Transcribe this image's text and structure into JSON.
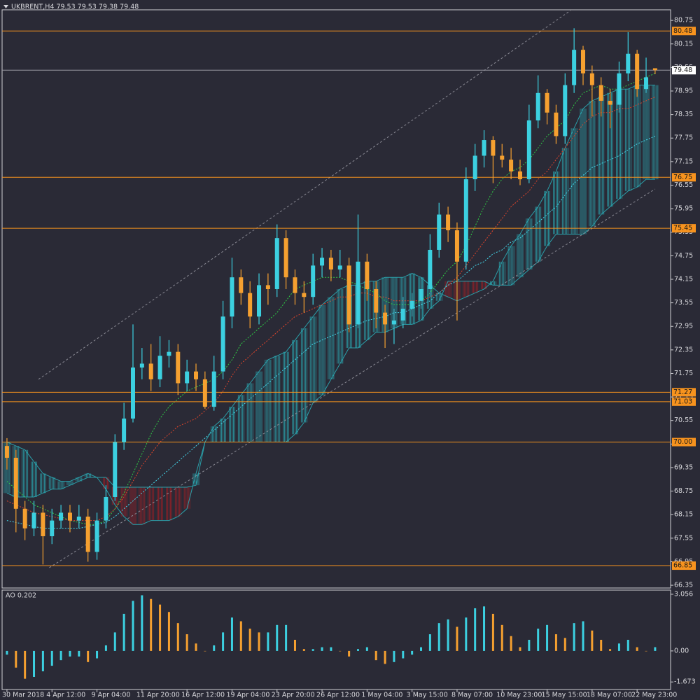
{
  "chart_data": [
    {
      "type": "candlestick",
      "title": "UKBRENT,H4  79.53 79.53 79.38 79.48",
      "up_color": "#3cd0e0",
      "down_color": "#f5a030",
      "xlim": [
        -0.54,
        73.72
      ],
      "ylim": [
        66.28,
        81.02
      ],
      "xticks": [
        {
          "value": 0,
          "label": "30 Mar 2018"
        },
        {
          "value": 5,
          "label": "4 Apr 12:00"
        },
        {
          "value": 10,
          "label": "9 Apr 04:00"
        },
        {
          "value": 15,
          "label": "11 Apr 20:00"
        },
        {
          "value": 20,
          "label": "16 Apr 12:00"
        },
        {
          "value": 25,
          "label": "19 Apr 04:00"
        },
        {
          "value": 30,
          "label": "23 Apr 20:00"
        },
        {
          "value": 35,
          "label": "26 Apr 12:00"
        },
        {
          "value": 40,
          "label": "1 May 04:00"
        },
        {
          "value": 45,
          "label": "3 May 15:00"
        },
        {
          "value": 50,
          "label": "8 May 07:00"
        },
        {
          "value": 55,
          "label": "10 May 23:00"
        },
        {
          "value": 60,
          "label": "15 May 15:00"
        },
        {
          "value": 65,
          "label": "18 May 07:00"
        },
        {
          "value": 70,
          "label": "22 May 23:00"
        }
      ],
      "yticks": [
        80.75,
        80.15,
        79.55,
        78.95,
        78.35,
        77.75,
        77.15,
        76.55,
        75.95,
        75.35,
        74.75,
        74.15,
        73.55,
        72.95,
        72.35,
        71.75,
        71.15,
        70.55,
        69.95,
        69.35,
        68.75,
        68.15,
        67.55,
        66.95,
        66.35
      ],
      "open": [
        69.9,
        69.6,
        68.3,
        67.8,
        68.2,
        67.6,
        68.0,
        68.2,
        68.0,
        68.1,
        67.2,
        68.0,
        68.6,
        70.0,
        70.6,
        71.9,
        72.0,
        71.6,
        72.2,
        72.3,
        71.5,
        71.8,
        71.6,
        70.9,
        71.8,
        73.2,
        74.2,
        73.8,
        73.2,
        74.0,
        73.9,
        75.2,
        74.2,
        73.8,
        73.7,
        74.5,
        74.7,
        74.4,
        74.5,
        73.0,
        74.6,
        73.9,
        73.3,
        73.0,
        73.1,
        73.4,
        73.6,
        73.9,
        74.9,
        75.8,
        75.4,
        74.6,
        76.7,
        77.3,
        77.7,
        77.3,
        77.2,
        76.9,
        76.7,
        78.2,
        78.9,
        78.4,
        77.8,
        79.1,
        80.0,
        79.4,
        79.1,
        78.7,
        78.6,
        79.4,
        79.9,
        79.0,
        79.53
      ],
      "high": [
        70.1,
        69.8,
        68.5,
        68.5,
        68.4,
        68.3,
        68.4,
        68.4,
        68.4,
        68.3,
        68.2,
        68.9,
        70.2,
        71.0,
        73.0,
        72.4,
        72.5,
        72.7,
        72.6,
        72.5,
        72.1,
        72.0,
        71.8,
        72.2,
        73.6,
        74.7,
        74.4,
        74.1,
        74.3,
        74.3,
        75.55,
        75.4,
        74.4,
        74.1,
        74.8,
        74.95,
        74.9,
        74.9,
        74.7,
        75.8,
        74.8,
        74.1,
        73.5,
        73.4,
        73.7,
        73.8,
        74.2,
        75.3,
        76.1,
        76.0,
        75.6,
        77.0,
        77.6,
        77.95,
        77.8,
        77.6,
        77.5,
        77.2,
        78.6,
        79.35,
        79.0,
        78.6,
        79.4,
        80.55,
        80.1,
        79.6,
        79.3,
        79.0,
        79.7,
        80.45,
        80.0,
        79.8,
        79.53
      ],
      "low": [
        69.3,
        67.7,
        67.5,
        67.6,
        66.88,
        67.4,
        67.8,
        67.7,
        67.8,
        66.95,
        67.0,
        67.8,
        68.5,
        69.8,
        70.5,
        71.6,
        71.3,
        71.4,
        71.9,
        71.2,
        71.3,
        71.3,
        70.85,
        70.8,
        71.6,
        72.9,
        73.5,
        72.9,
        73.0,
        73.5,
        73.7,
        73.9,
        73.5,
        73.3,
        73.5,
        74.2,
        74.1,
        74.2,
        72.8,
        72.9,
        73.6,
        72.9,
        72.4,
        72.5,
        72.9,
        73.2,
        73.4,
        73.7,
        74.7,
        75.1,
        73.1,
        74.4,
        76.4,
        77.0,
        76.6,
        77.0,
        76.7,
        76.55,
        76.6,
        78.0,
        78.1,
        77.6,
        77.6,
        78.9,
        79.1,
        78.3,
        78.3,
        78.0,
        78.4,
        79.2,
        78.8,
        78.9,
        79.38
      ],
      "close": [
        69.6,
        68.3,
        67.8,
        68.2,
        67.6,
        68.0,
        68.2,
        68.0,
        68.1,
        67.2,
        68.0,
        68.6,
        70.0,
        70.6,
        71.9,
        72.0,
        71.6,
        72.2,
        72.3,
        71.5,
        71.8,
        71.6,
        70.9,
        71.8,
        73.2,
        74.2,
        73.8,
        73.2,
        74.0,
        73.9,
        75.2,
        74.2,
        73.8,
        73.7,
        74.5,
        74.7,
        74.4,
        74.5,
        73.0,
        74.6,
        73.9,
        73.3,
        73.0,
        73.1,
        73.4,
        73.6,
        73.9,
        74.9,
        75.8,
        75.4,
        74.6,
        76.7,
        77.3,
        77.7,
        77.3,
        77.2,
        76.9,
        76.7,
        78.2,
        78.9,
        78.4,
        77.8,
        79.1,
        80.0,
        79.4,
        79.1,
        78.7,
        78.6,
        79.4,
        79.9,
        79.0,
        79.3,
        79.48
      ],
      "cloud": {
        "up_color": "#2aa0aa",
        "down_color": "#9a1f26",
        "span_a": [
          70.0,
          69.9,
          69.8,
          69.5,
          69.2,
          69.1,
          69.0,
          69.0,
          69.1,
          69.2,
          69.1,
          68.8,
          68.4,
          68.1,
          67.9,
          67.9,
          68.0,
          68.0,
          68.0,
          68.1,
          68.3,
          69.2,
          70.0,
          70.4,
          70.6,
          70.9,
          71.2,
          71.5,
          71.8,
          72.1,
          72.2,
          72.3,
          72.6,
          72.9,
          73.2,
          73.5,
          73.7,
          73.9,
          74.0,
          74.0,
          74.1,
          74.1,
          74.2,
          74.2,
          74.2,
          74.3,
          74.2,
          74.0,
          73.8,
          73.7,
          73.6,
          73.7,
          73.8,
          73.9,
          74.1,
          74.6,
          75.0,
          75.3,
          75.7,
          76.0,
          76.4,
          76.9,
          77.5,
          78.0,
          78.5,
          78.7,
          78.8,
          78.9,
          79.0,
          79.0,
          79.1,
          79.1,
          79.1
        ],
        "span_b": [
          68.7,
          68.6,
          68.6,
          68.6,
          68.7,
          68.8,
          68.8,
          68.9,
          69.0,
          69.1,
          69.1,
          69.1,
          68.85,
          68.85,
          68.85,
          68.85,
          68.85,
          68.85,
          68.85,
          68.85,
          68.85,
          68.9,
          70.0,
          70.0,
          70.0,
          70.0,
          70.0,
          70.0,
          70.0,
          70.0,
          70.0,
          70.0,
          70.2,
          70.5,
          71.0,
          71.2,
          71.6,
          72.0,
          72.4,
          72.4,
          72.6,
          72.8,
          72.8,
          72.9,
          73.0,
          73.0,
          73.1,
          73.4,
          73.6,
          74.1,
          74.1,
          74.1,
          74.1,
          74.1,
          74.0,
          74.0,
          74.0,
          74.2,
          74.4,
          74.6,
          75.0,
          75.3,
          75.3,
          75.3,
          75.3,
          75.5,
          75.8,
          76.0,
          76.2,
          76.4,
          76.5,
          76.7,
          76.7
        ]
      },
      "lines": [
        {
          "color": "#2fcc45",
          "values": [
            69.0,
            68.8,
            68.6,
            68.4,
            68.3,
            68.2,
            68.1,
            68.0,
            67.95,
            67.9,
            67.9,
            68.0,
            68.3,
            68.7,
            69.2,
            69.7,
            70.2,
            70.6,
            70.9,
            71.1,
            71.3,
            71.4,
            71.5,
            71.6,
            71.8,
            72.1,
            72.5,
            72.7,
            72.9,
            73.1,
            73.3,
            73.6,
            73.9,
            74.0,
            74.1,
            74.2,
            74.2,
            74.2,
            74.1,
            74.0,
            73.9,
            73.8,
            73.6,
            73.5,
            73.5,
            73.5,
            73.6,
            73.8,
            74.1,
            74.4,
            74.6,
            75.0,
            75.5,
            76.0,
            76.4,
            76.7,
            76.9,
            77.0,
            77.2,
            77.5,
            77.8,
            78.0,
            78.2,
            78.6,
            78.9,
            79.0,
            79.1,
            79.0,
            79.0,
            79.1,
            79.2,
            79.3,
            79.4
          ]
        },
        {
          "color": "#e0452b",
          "values": [
            68.5,
            68.4,
            68.3,
            68.2,
            68.15,
            68.1,
            68.05,
            68.0,
            68.0,
            68.0,
            68.0,
            68.1,
            68.3,
            68.6,
            69.0,
            69.4,
            69.7,
            70.0,
            70.2,
            70.4,
            70.5,
            70.6,
            70.8,
            71.0,
            71.3,
            71.7,
            72.0,
            72.2,
            72.4,
            72.6,
            72.8,
            73.0,
            73.2,
            73.3,
            73.4,
            73.5,
            73.6,
            73.7,
            73.7,
            73.8,
            73.8,
            73.7,
            73.7,
            73.6,
            73.6,
            73.6,
            73.6,
            73.7,
            73.8,
            74.0,
            74.2,
            74.5,
            74.8,
            75.1,
            75.4,
            75.7,
            76.0,
            76.2,
            76.4,
            76.7,
            76.9,
            77.2,
            77.5,
            77.8,
            78.1,
            78.3,
            78.4,
            78.4,
            78.5,
            78.5,
            78.6,
            78.7,
            78.8
          ]
        },
        {
          "color": "#45d8ec",
          "values": [
            68.0,
            67.95,
            67.9,
            67.85,
            67.8,
            67.8,
            67.8,
            67.8,
            67.8,
            67.85,
            67.9,
            67.95,
            68.1,
            68.3,
            68.5,
            68.7,
            68.9,
            69.1,
            69.3,
            69.5,
            69.7,
            69.9,
            70.1,
            70.3,
            70.5,
            70.7,
            70.9,
            71.1,
            71.3,
            71.5,
            71.7,
            71.9,
            72.1,
            72.3,
            72.5,
            72.6,
            72.7,
            72.8,
            72.9,
            73.0,
            73.1,
            73.15,
            73.2,
            73.3,
            73.3,
            73.4,
            73.5,
            73.6,
            73.8,
            74.0,
            74.1,
            74.3,
            74.5,
            74.6,
            74.8,
            74.9,
            75.1,
            75.2,
            75.4,
            75.6,
            75.8,
            76.0,
            76.3,
            76.6,
            76.8,
            77.0,
            77.1,
            77.2,
            77.3,
            77.45,
            77.6,
            77.7,
            77.8
          ]
        }
      ],
      "trendlines": {
        "color": "#8a8a94",
        "lines": [
          {
            "x": [
              3.5,
              62.6
            ],
            "y": [
              71.6,
              81.0
            ]
          },
          {
            "x": [
              4.7,
              72
            ],
            "y": [
              66.8,
              76.45
            ]
          }
        ]
      },
      "levels": {
        "color": "#f7931e",
        "values": [
          80.48,
          76.75,
          75.45,
          71.27,
          71.03,
          {
            "value": 70,
            "label": "70.00"
          },
          66.85
        ]
      },
      "last_price": {
        "value": 79.48,
        "color": "#9a9aa4"
      }
    },
    {
      "type": "bar",
      "title": "AO 0.202",
      "up_color": "#3cd0e0",
      "down_color": "#f5a030",
      "ylim": [
        -2.08,
        3.28
      ],
      "yticks": [
        3.056,
        {
          "value": 0,
          "label": "0.00"
        },
        -1.673
      ],
      "values": [
        -0.2,
        -0.9,
        -1.5,
        -1.4,
        -1.1,
        -0.8,
        -0.5,
        -0.3,
        -0.3,
        -0.6,
        -0.4,
        0.3,
        1.0,
        2.0,
        2.7,
        3.0,
        2.8,
        2.5,
        2.1,
        1.5,
        0.9,
        0.4,
        0.0,
        0.3,
        1.0,
        1.8,
        1.6,
        1.2,
        1.0,
        1.0,
        1.4,
        1.4,
        0.6,
        0.1,
        0.1,
        0.2,
        0.2,
        0.0,
        -0.3,
        0.1,
        0.2,
        -0.5,
        -0.7,
        -0.6,
        -0.4,
        -0.2,
        0.2,
        0.9,
        1.5,
        1.7,
        1.3,
        1.8,
        2.3,
        2.4,
        2.0,
        1.4,
        0.8,
        0.2,
        0.6,
        1.2,
        1.4,
        0.9,
        0.7,
        1.5,
        1.6,
        1.1,
        0.6,
        0.1,
        0.4,
        0.6,
        0.2,
        0.0,
        0.202
      ]
    }
  ]
}
